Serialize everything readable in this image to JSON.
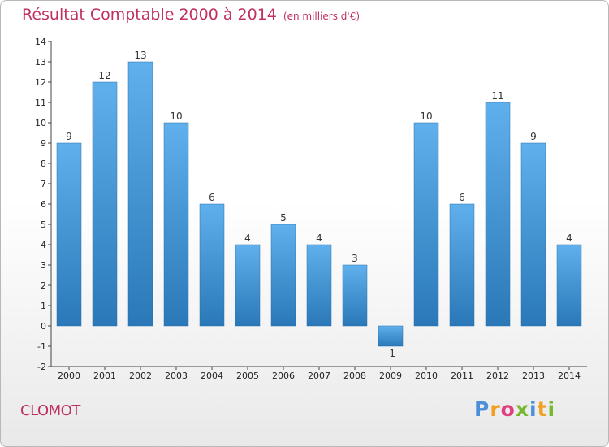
{
  "header": {
    "title": "Résultat Comptable 2000 à 2014",
    "subtitle": "(en milliers d'€)"
  },
  "commune": "CLOMOT",
  "logo": {
    "text": "Proxiti",
    "letters": [
      {
        "char": "P",
        "color": "#4a8fd8"
      },
      {
        "char": "r",
        "color": "#f0a020"
      },
      {
        "char": "o",
        "color": "#e04080"
      },
      {
        "char": "x",
        "color": "#78b830"
      },
      {
        "char": "i",
        "color": "#4a8fd8"
      },
      {
        "char": "t",
        "color": "#f0a020"
      },
      {
        "char": "i",
        "color": "#78b830"
      }
    ]
  },
  "colors": {
    "bar_top": "#5fb0ec",
    "bar_bottom": "#2a78b8",
    "title": "#c03060"
  },
  "chart_data": {
    "type": "bar",
    "title": "Résultat Comptable 2000 à 2014",
    "subtitle": "(en milliers d'€)",
    "xlabel": "",
    "ylabel": "",
    "categories": [
      "2000",
      "2001",
      "2002",
      "2003",
      "2004",
      "2005",
      "2006",
      "2007",
      "2008",
      "2009",
      "2010",
      "2011",
      "2012",
      "2013",
      "2014"
    ],
    "values": [
      9,
      12,
      13,
      10,
      6,
      4,
      5,
      4,
      3,
      -1,
      10,
      6,
      11,
      9,
      4
    ],
    "value_labels": [
      "9",
      "12",
      "13",
      "10",
      "6",
      "4",
      "5",
      "4",
      "3",
      "-1",
      "10",
      "6",
      "11",
      "9",
      "4"
    ],
    "ylim": [
      -2,
      14
    ],
    "yticks": [
      -2,
      -1,
      0,
      1,
      2,
      3,
      4,
      5,
      6,
      7,
      8,
      9,
      10,
      11,
      12,
      13,
      14
    ],
    "grid": false,
    "legend": "none"
  }
}
